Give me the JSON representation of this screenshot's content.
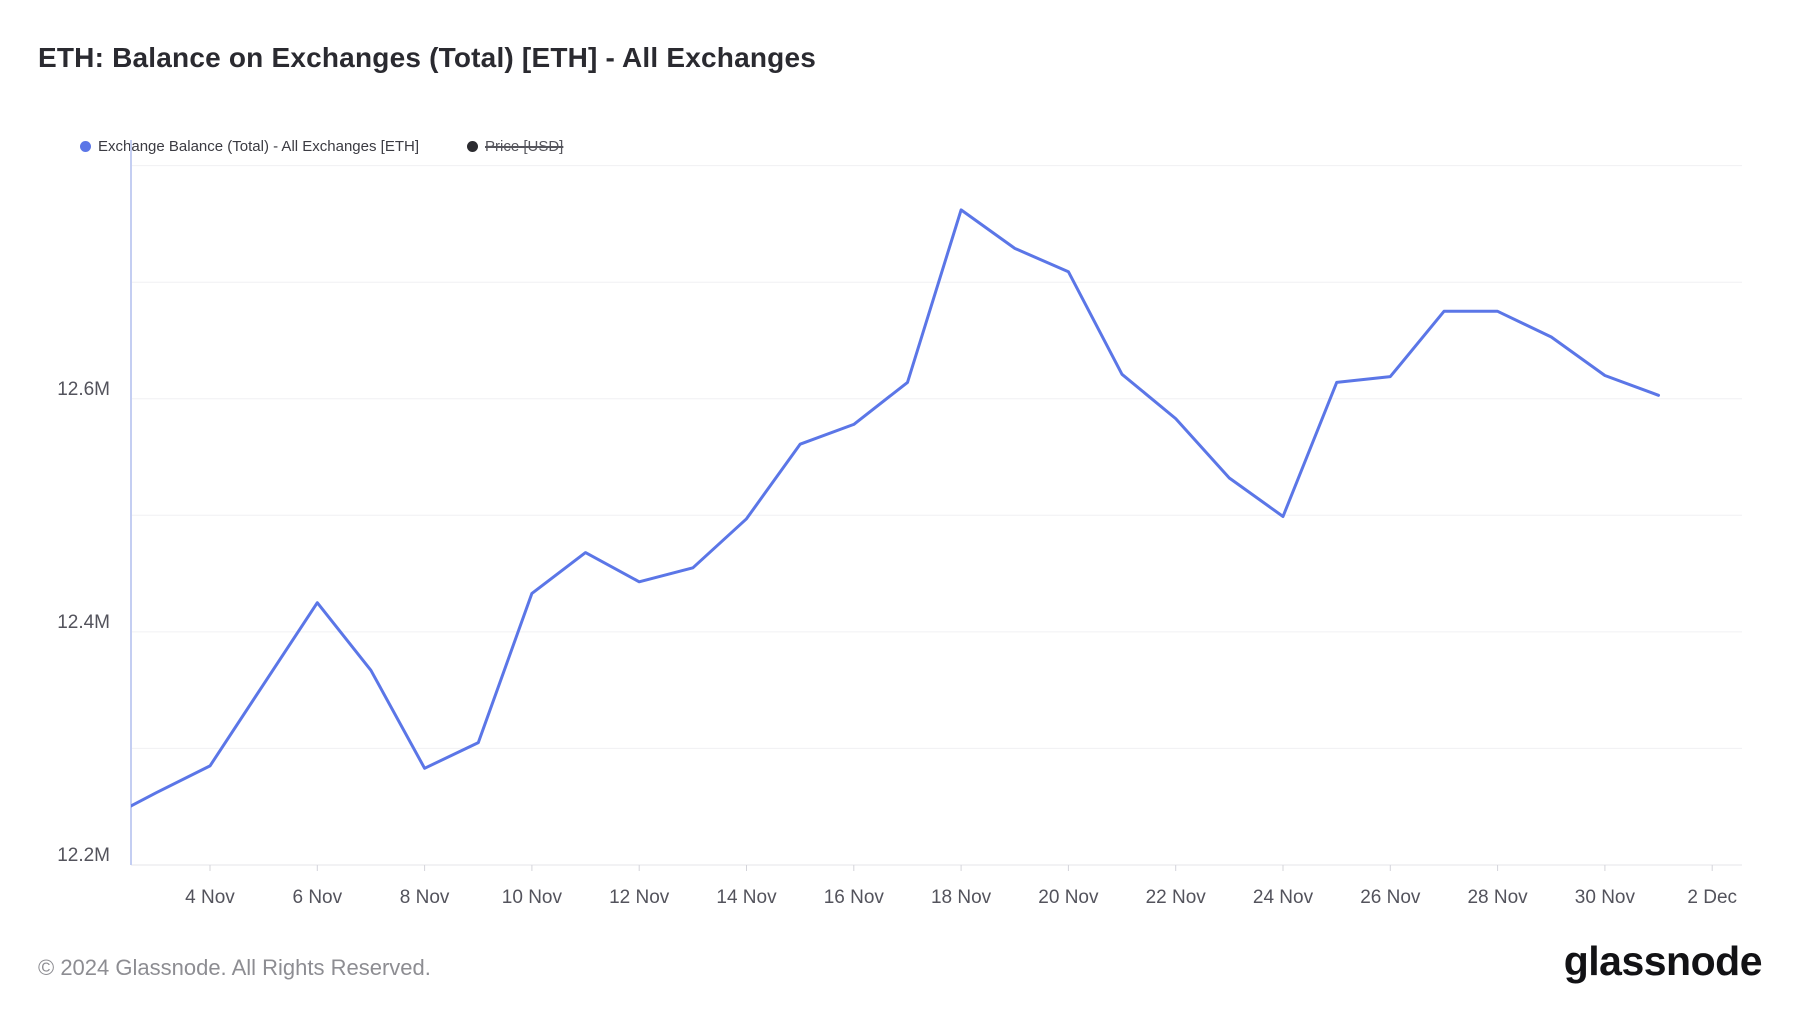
{
  "header": {
    "title": "ETH: Balance on Exchanges (Total) [ETH] - All Exchanges"
  },
  "legend": {
    "items": [
      {
        "label": "Exchange Balance (Total) - All Exchanges [ETH]",
        "color": "#5b76e7",
        "active": true
      },
      {
        "label": "Price [USD]",
        "color": "#2b2b30",
        "active": false
      }
    ]
  },
  "chart_data": {
    "type": "line",
    "title": "ETH: Balance on Exchanges (Total) [ETH] - All Exchanges",
    "grid": "horizontal",
    "legend_position": "top-left",
    "ylim": [
      12.2,
      12.822
    ],
    "y_gridline_step": 0.1,
    "y_ticks": [
      {
        "value": 12.2,
        "label": "12.2M"
      },
      {
        "value": 12.4,
        "label": "12.4M"
      },
      {
        "value": 12.6,
        "label": "12.6M"
      }
    ],
    "x_ticks": [
      "4 Nov",
      "6 Nov",
      "8 Nov",
      "10 Nov",
      "12 Nov",
      "14 Nov",
      "16 Nov",
      "18 Nov",
      "20 Nov",
      "22 Nov",
      "24 Nov",
      "26 Nov",
      "28 Nov",
      "30 Nov",
      "2 Dec"
    ],
    "series": [
      {
        "name": "Exchange Balance (Total) - All Exchanges [ETH]",
        "color": "#5b76e7",
        "unit": "ETH (millions)",
        "hidden": false,
        "x": [
          "2 Nov",
          "3 Nov",
          "4 Nov",
          "5 Nov",
          "6 Nov",
          "7 Nov",
          "8 Nov",
          "9 Nov",
          "10 Nov",
          "11 Nov",
          "12 Nov",
          "13 Nov",
          "14 Nov",
          "15 Nov",
          "16 Nov",
          "17 Nov",
          "18 Nov",
          "19 Nov",
          "20 Nov",
          "21 Nov",
          "22 Nov",
          "23 Nov",
          "24 Nov",
          "25 Nov",
          "26 Nov",
          "27 Nov",
          "28 Nov",
          "29 Nov",
          "30 Nov",
          "1 Dec"
        ],
        "values": [
          12.238,
          12.262,
          12.285,
          12.355,
          12.425,
          12.367,
          12.283,
          12.305,
          12.433,
          12.468,
          12.443,
          12.455,
          12.497,
          12.561,
          12.578,
          12.614,
          12.762,
          12.729,
          12.709,
          12.621,
          12.583,
          12.532,
          12.499,
          12.614,
          12.619,
          12.675,
          12.675,
          12.653,
          12.62,
          12.603
        ]
      },
      {
        "name": "Price [USD]",
        "color": "#2b2b30",
        "hidden": true,
        "x": [],
        "values": []
      }
    ]
  },
  "footer": {
    "copyright": "© 2024 Glassnode. All Rights Reserved.",
    "brand": "glassnode"
  }
}
